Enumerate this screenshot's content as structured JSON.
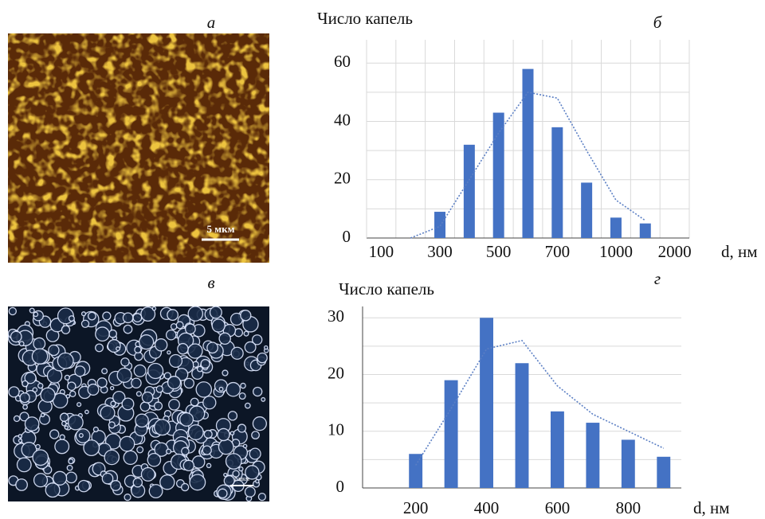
{
  "panels": [
    {
      "label": "а",
      "scale_bar": "5 мкм"
    },
    {
      "label": "в",
      "scale_bar": "1 мкм"
    }
  ],
  "chart_data": [
    {
      "type": "bar",
      "panel": "б",
      "y_label": "Число капель",
      "x_label": "d, нм",
      "categories": [
        "100",
        null,
        "300",
        null,
        "500",
        null,
        "700",
        null,
        "1000",
        null,
        "2000"
      ],
      "values": [
        0,
        0,
        9,
        32,
        43,
        58,
        38,
        19,
        7,
        5,
        null
      ],
      "trend": [
        null,
        0,
        4,
        20,
        36,
        50,
        48,
        30,
        13,
        6,
        null
      ],
      "color": "#4472c4",
      "trend_color": "#5b7fc4",
      "ylim": [
        0,
        68
      ],
      "yticks": [
        0,
        20,
        40,
        60
      ],
      "minor_yticks": [
        10,
        30,
        50
      ],
      "grid": true,
      "vgrid": true
    },
    {
      "type": "bar",
      "panel": "г",
      "y_label": "Число капель",
      "x_label": "d, нм",
      "categories": [
        null,
        "200",
        null,
        "400",
        null,
        "600",
        null,
        "800",
        null
      ],
      "values": [
        null,
        6,
        19,
        30,
        22,
        13.5,
        11.5,
        8.5,
        5.5
      ],
      "trend": [
        null,
        4,
        14,
        24.5,
        26,
        18,
        13,
        10,
        7
      ],
      "color": "#4472c4",
      "trend_color": "#5b7fc4",
      "ylim": [
        0,
        32
      ],
      "yticks": [
        0,
        10,
        20,
        30
      ],
      "minor_yticks": [
        5,
        15,
        25
      ],
      "grid": true,
      "vgrid": false
    }
  ]
}
